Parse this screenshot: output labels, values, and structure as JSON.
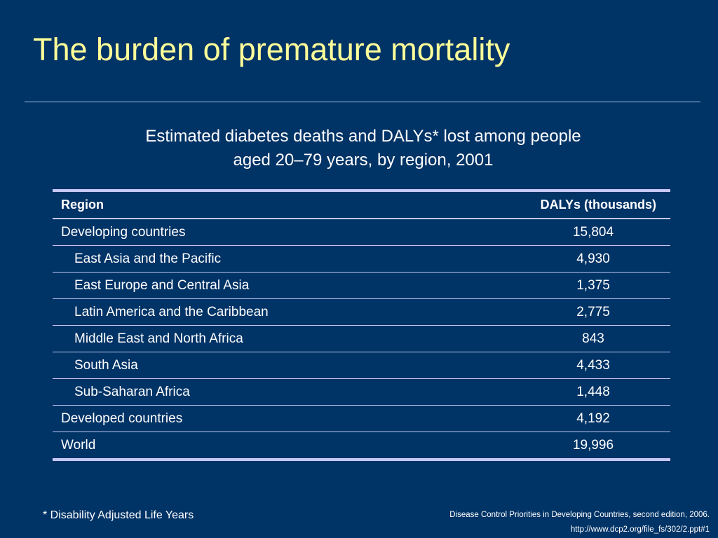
{
  "slide": {
    "title": "The burden of premature mortality",
    "subtitle_line1": "Estimated diabetes deaths and DALYs* lost among people",
    "subtitle_line2": "aged 20–79 years, by region, 2001"
  },
  "table": {
    "headers": {
      "region": "Region",
      "value": "DALYs (thousands)"
    },
    "rows": [
      {
        "region": "Developing countries",
        "value": "15,804",
        "indent": false
      },
      {
        "region": "East Asia and the Pacific",
        "value": "4,930",
        "indent": true
      },
      {
        "region": "East Europe and Central Asia",
        "value": "1,375",
        "indent": true
      },
      {
        "region": "Latin America and the Caribbean",
        "value": "2,775",
        "indent": true
      },
      {
        "region": "Middle East and North Africa",
        "value": "843",
        "indent": true
      },
      {
        "region": "South Asia",
        "value": "4,433",
        "indent": true
      },
      {
        "region": "Sub-Saharan Africa",
        "value": "1,448",
        "indent": true
      },
      {
        "region": "Developed countries",
        "value": "4,192",
        "indent": false
      },
      {
        "region": "World",
        "value": "19,996",
        "indent": false
      }
    ]
  },
  "footnote": "* Disability Adjusted Life Years",
  "source": {
    "line1": "Disease Control Priorities in Developing Countries, second edition, 2006.",
    "line2": "http://www.dcp2.org/file_fs/302/2.ppt#1"
  },
  "colors": {
    "background": "#003366",
    "title": "#ffff99",
    "text": "#ffffff",
    "table_rules": "#c6c9f5",
    "divider": "#a9c2e3"
  }
}
